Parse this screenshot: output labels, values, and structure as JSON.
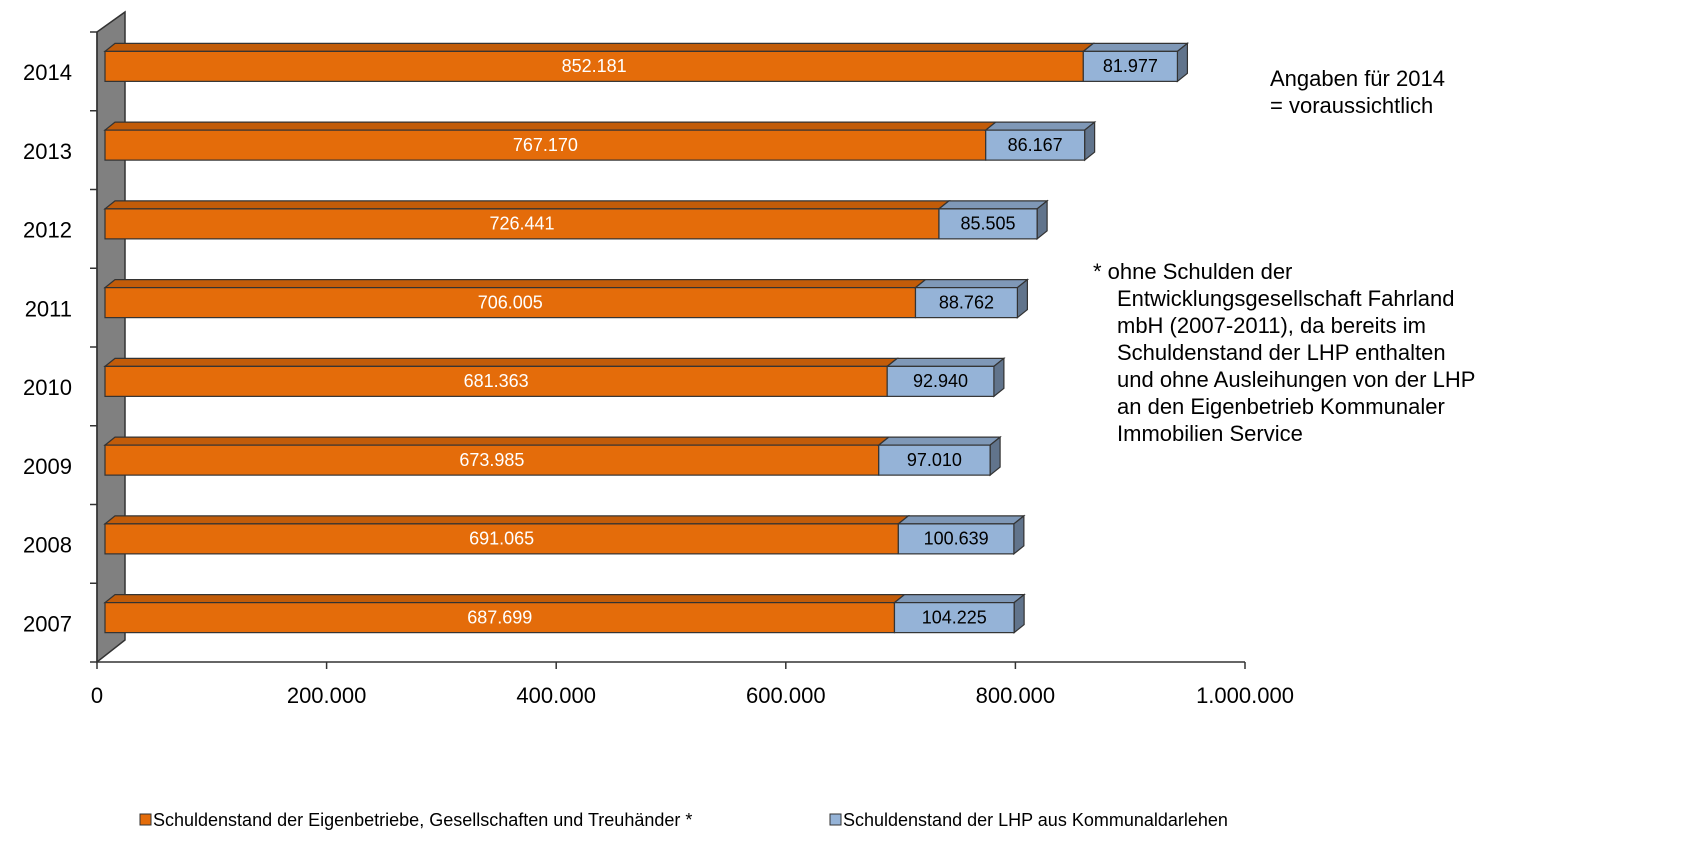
{
  "chart_data": {
    "type": "bar",
    "stacked": true,
    "orientation": "horizontal",
    "categories": [
      "2007",
      "2008",
      "2009",
      "2010",
      "2011",
      "2012",
      "2013",
      "2014"
    ],
    "series": [
      {
        "name": "Schuldenstand der Eigenbetriebe, Gesellschaften und Treuhänder *",
        "color": "#E46C0A",
        "values": [
          687699,
          691065,
          673985,
          681363,
          706005,
          726441,
          767170,
          852181
        ],
        "value_labels": [
          "687.699",
          "691.065",
          "673.985",
          "681.363",
          "706.005",
          "726.441",
          "767.170",
          "852.181"
        ]
      },
      {
        "name": "Schuldenstand der LHP aus Kommunaldarlehen",
        "color": "#95B3D7",
        "values": [
          104225,
          100639,
          97010,
          92940,
          88762,
          85505,
          86167,
          81977
        ],
        "value_labels": [
          "104.225",
          "100.639",
          "97.010",
          "92.940",
          "88.762",
          "85.505",
          "86.167",
          "81.977"
        ]
      }
    ],
    "xlim": [
      0,
      1000000
    ],
    "xticks": [
      0,
      {
        "value": 200000,
        "label": "200.000"
      },
      {
        "value": 400000,
        "label": "400.000"
      },
      {
        "value": 600000,
        "label": "600.000"
      },
      {
        "value": 800000,
        "label": "800.000"
      },
      {
        "value": 1000000,
        "label": "1.000.000"
      }
    ],
    "annotations": [
      "Angaben für 2014",
      "= voraussichtlich"
    ],
    "footnote": [
      "* ohne Schulden der",
      "Entwicklungsgesellschaft Fahrland",
      "mbH (2007-2011), da bereits im",
      "Schuldenstand der LHP enthalten",
      "und  ohne Ausleihungen von der LHP",
      "an den Eigenbetrieb Kommunaler",
      "Immobilien Service"
    ],
    "legend": "bottom"
  }
}
